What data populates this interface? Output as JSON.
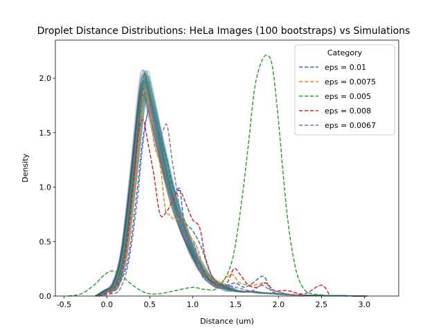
{
  "chart_data": {
    "type": "line",
    "title": "Droplet Distance Distributions: HeLa Images (100 bootstraps) vs Simulations",
    "xlabel": "Distance (um)",
    "ylabel": "Density",
    "xlim": [
      -0.6,
      3.4
    ],
    "ylim": [
      0,
      2.35
    ],
    "xticks": [
      "-0.5",
      "0.0",
      "0.5",
      "1.0",
      "1.5",
      "2.0",
      "2.5",
      "3.0"
    ],
    "yticks": [
      "0.0",
      "0.5",
      "1.0",
      "1.5",
      "2.0"
    ],
    "grid": false,
    "legend": {
      "title": "Category",
      "placement": "top-right"
    },
    "bootstrap_band": {
      "name": "HeLa Images (100 bootstraps)",
      "count": 100,
      "colors": [
        "#2c2d54",
        "#35537a",
        "#2f7f86",
        "#3a9a7d",
        "#6db98a",
        "#a3a9bc"
      ],
      "mean_curve": {
        "x": [
          -0.1,
          0.0,
          0.1,
          0.2,
          0.3,
          0.4,
          0.45,
          0.5,
          0.6,
          0.7,
          0.8,
          0.9,
          1.0,
          1.1,
          1.2,
          1.3,
          1.4,
          1.5,
          1.6,
          1.7,
          1.8,
          2.0,
          2.2,
          2.5,
          3.0
        ],
        "y": [
          0.0,
          0.05,
          0.1,
          0.4,
          1.05,
          1.8,
          1.98,
          1.85,
          1.5,
          1.15,
          0.85,
          0.62,
          0.42,
          0.27,
          0.16,
          0.1,
          0.07,
          0.05,
          0.04,
          0.04,
          0.03,
          0.02,
          0.01,
          0.005,
          0.0
        ]
      }
    },
    "series": [
      {
        "name": "eps = 0.01",
        "color": "#1f77b4",
        "x": [
          -0.1,
          0.05,
          0.15,
          0.25,
          0.35,
          0.42,
          0.5,
          0.55,
          0.6,
          0.65,
          0.7,
          0.75,
          0.8,
          0.85,
          0.9,
          1.0,
          1.1,
          1.2,
          1.3,
          1.4,
          1.5,
          1.6,
          1.7,
          1.8,
          1.85,
          1.9,
          2.0,
          2.2,
          2.5,
          2.8
        ],
        "y": [
          0.0,
          0.03,
          0.12,
          0.35,
          0.95,
          1.45,
          1.75,
          1.68,
          1.52,
          1.38,
          1.25,
          1.05,
          0.95,
          0.98,
          0.7,
          0.6,
          0.45,
          0.22,
          0.12,
          0.1,
          0.12,
          0.08,
          0.12,
          0.18,
          0.16,
          0.06,
          0.02,
          0.01,
          0.005,
          0.0
        ]
      },
      {
        "name": "eps = 0.0075",
        "color": "#ff7f0e",
        "x": [
          -0.1,
          0.05,
          0.15,
          0.25,
          0.35,
          0.42,
          0.48,
          0.55,
          0.62,
          0.68,
          0.72,
          0.8,
          0.88,
          0.95,
          1.05,
          1.15,
          1.3,
          1.45,
          1.55,
          1.7,
          1.85,
          1.95,
          2.1,
          2.3
        ],
        "y": [
          0.0,
          0.04,
          0.15,
          0.5,
          1.2,
          1.85,
          1.8,
          1.4,
          1.2,
          0.8,
          0.75,
          0.7,
          0.72,
          0.58,
          0.45,
          0.22,
          0.12,
          0.2,
          0.12,
          0.1,
          0.12,
          0.05,
          0.02,
          0.0
        ]
      },
      {
        "name": "eps = 0.005",
        "color": "#2ca02c",
        "x": [
          -0.45,
          -0.3,
          -0.15,
          -0.05,
          0.05,
          0.15,
          0.3,
          0.45,
          0.6,
          0.8,
          1.0,
          1.15,
          1.3,
          1.45,
          1.55,
          1.65,
          1.72,
          1.8,
          1.87,
          1.93,
          2.0,
          2.1,
          2.2,
          2.3,
          2.4,
          2.5,
          2.6
        ],
        "y": [
          0.0,
          0.02,
          0.1,
          0.18,
          0.23,
          0.2,
          0.1,
          0.03,
          0.02,
          0.05,
          0.08,
          0.06,
          0.08,
          0.3,
          0.75,
          1.4,
          1.9,
          2.15,
          2.21,
          2.1,
          1.6,
          0.75,
          0.25,
          0.06,
          0.02,
          0.01,
          0.0
        ]
      },
      {
        "name": "eps = 0.008",
        "color": "#d62728",
        "x": [
          -0.1,
          0.05,
          0.15,
          0.22,
          0.3,
          0.36,
          0.42,
          0.48,
          0.55,
          0.62,
          0.7,
          0.78,
          0.85,
          0.92,
          1.0,
          1.08,
          1.15,
          1.25,
          1.38,
          1.48,
          1.55,
          1.65,
          1.75,
          1.85,
          1.95,
          2.1,
          2.3,
          2.5,
          2.6
        ],
        "y": [
          0.0,
          0.05,
          0.15,
          0.4,
          0.95,
          1.45,
          1.62,
          1.4,
          1.1,
          0.75,
          0.78,
          0.9,
          0.97,
          0.85,
          0.7,
          0.63,
          0.35,
          0.15,
          0.1,
          0.25,
          0.2,
          0.1,
          0.08,
          0.12,
          0.05,
          0.05,
          0.02,
          0.1,
          0.0
        ]
      },
      {
        "name": "eps = 0.0067",
        "color": "#9467bd",
        "x": [
          -0.1,
          0.05,
          0.15,
          0.25,
          0.35,
          0.42,
          0.48,
          0.52,
          0.58,
          0.64,
          0.7,
          0.76,
          0.82,
          0.88,
          0.95,
          1.02,
          1.1,
          1.2,
          1.3,
          1.4,
          1.5,
          1.6,
          1.7,
          1.8,
          1.9,
          2.1,
          2.3
        ],
        "y": [
          0.0,
          0.02,
          0.06,
          0.3,
          0.85,
          1.4,
          1.7,
          1.68,
          1.55,
          1.5,
          1.57,
          1.25,
          0.95,
          0.65,
          0.5,
          0.47,
          0.2,
          0.12,
          0.08,
          0.1,
          0.08,
          0.06,
          0.05,
          0.1,
          0.06,
          0.02,
          0.0
        ]
      }
    ]
  }
}
